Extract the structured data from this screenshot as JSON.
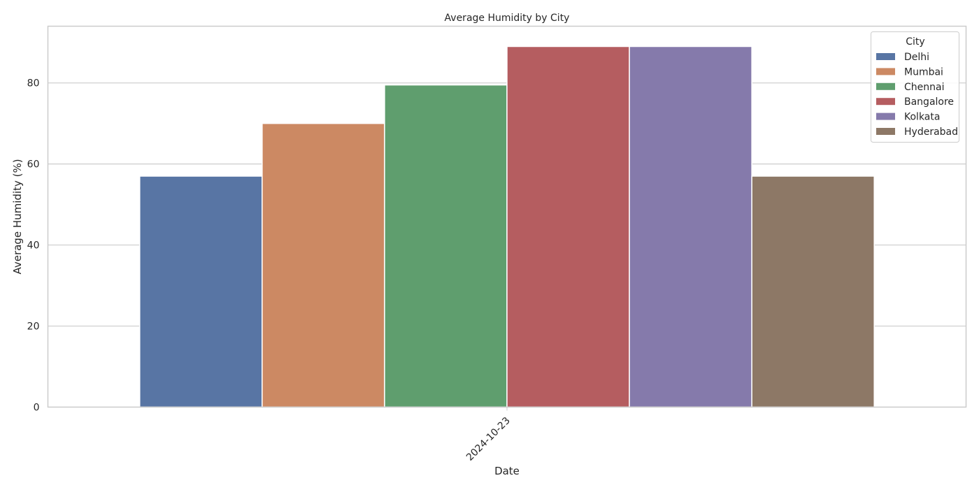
{
  "chart_data": {
    "type": "bar",
    "title": "Average Humidity by City",
    "xlabel": "Date",
    "ylabel": "Average Humidity (%)",
    "categories": [
      "2024-10-23"
    ],
    "ylim": [
      0,
      94
    ],
    "yticks": [
      0,
      20,
      40,
      60,
      80
    ],
    "grid": true,
    "legend": {
      "title": "City",
      "placement": "top-right"
    },
    "series": [
      {
        "name": "Delhi",
        "values": [
          57
        ],
        "color": "#5875a4"
      },
      {
        "name": "Mumbai",
        "values": [
          70
        ],
        "color": "#cc8963"
      },
      {
        "name": "Chennai",
        "values": [
          79.5
        ],
        "color": "#5f9e6e"
      },
      {
        "name": "Bangalore",
        "values": [
          89
        ],
        "color": "#b55d60"
      },
      {
        "name": "Kolkata",
        "values": [
          89
        ],
        "color": "#857aab"
      },
      {
        "name": "Hyderabad",
        "values": [
          57
        ],
        "color": "#8d7866"
      }
    ]
  }
}
